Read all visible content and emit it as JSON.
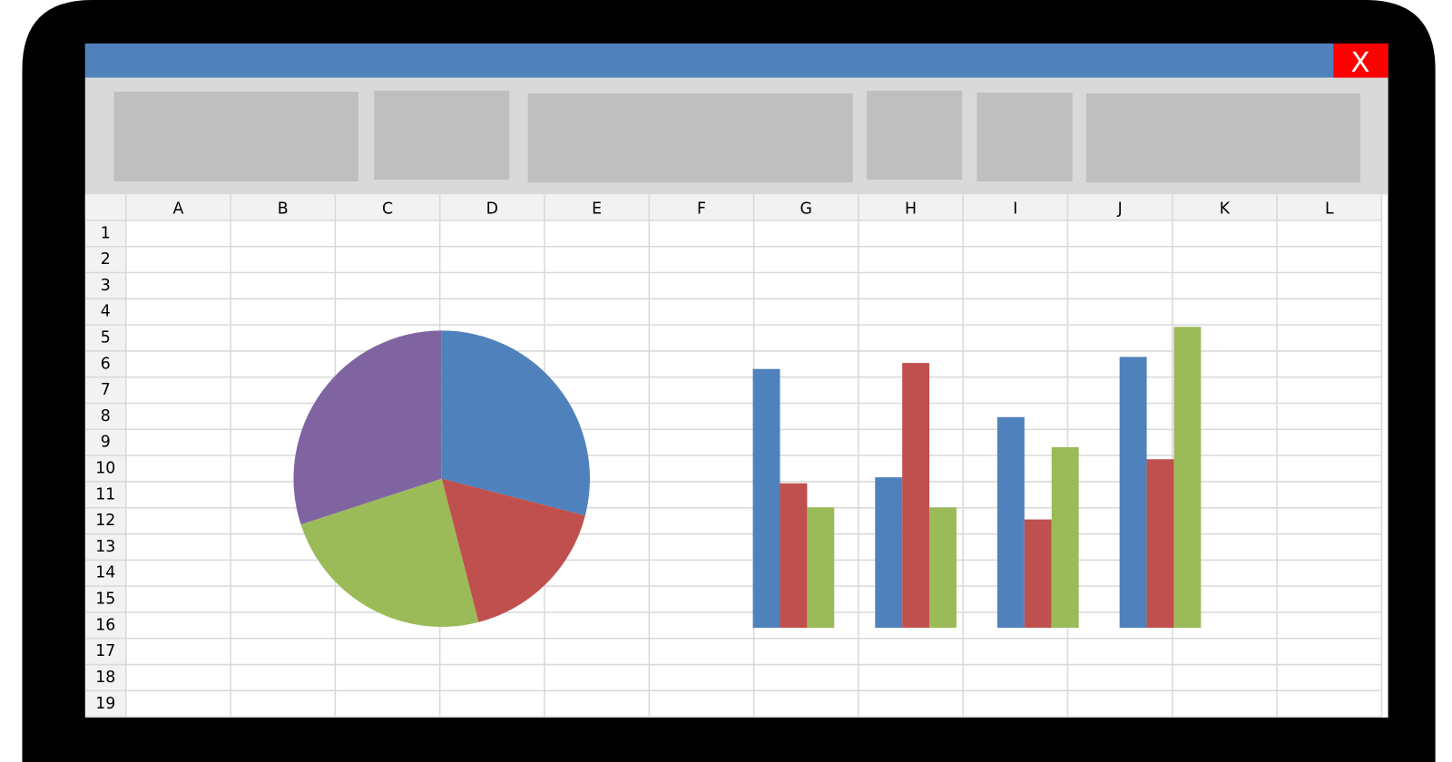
{
  "window": {
    "close": "X"
  },
  "sheet": {
    "columns": [
      "A",
      "B",
      "C",
      "D",
      "E",
      "F",
      "G",
      "H",
      "I",
      "J",
      "K",
      "L"
    ],
    "rows": [
      1,
      2,
      3,
      4,
      5,
      6,
      7,
      8,
      9,
      10,
      11,
      12,
      13,
      14,
      15,
      16,
      17,
      18,
      19
    ]
  },
  "chart_data": [
    {
      "type": "pie",
      "values": [
        29,
        17,
        24,
        30
      ],
      "colors": [
        "#4f81bd",
        "#c0504d",
        "#9bbb59",
        "#8064a2"
      ]
    },
    {
      "type": "bar",
      "categories": [
        null,
        null,
        null,
        null
      ],
      "ylim": [
        0,
        10
      ],
      "series": [
        {
          "color": "#4f81bd",
          "values": [
            8.6,
            5.0,
            7.0,
            9.0
          ]
        },
        {
          "color": "#c0504d",
          "values": [
            4.8,
            8.8,
            3.6,
            5.6
          ]
        },
        {
          "color": "#9bbb59",
          "values": [
            4.0,
            4.0,
            6.0,
            10.0
          ]
        }
      ]
    }
  ]
}
